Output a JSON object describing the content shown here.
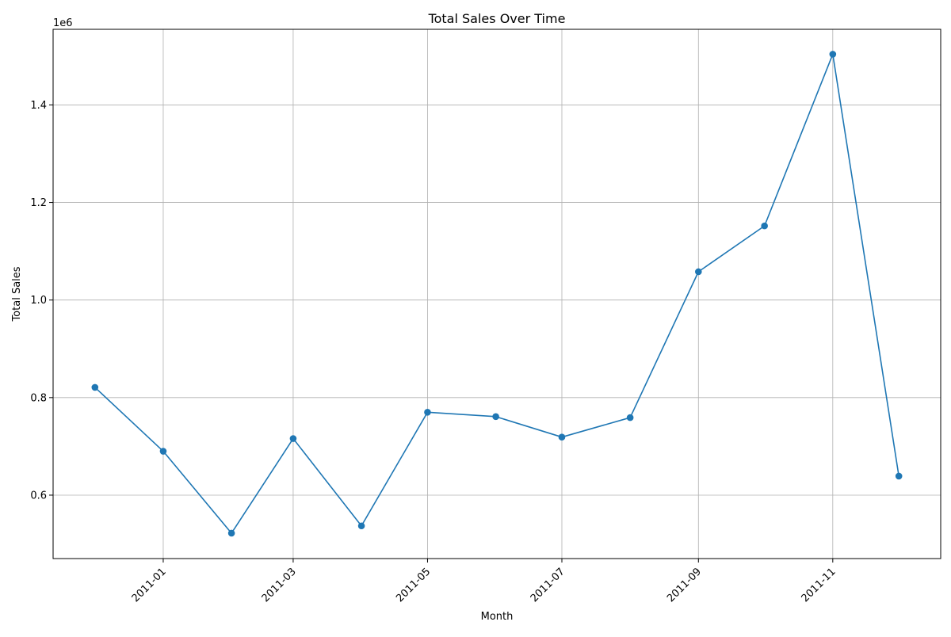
{
  "chart_data": {
    "type": "line",
    "title": "Total Sales Over Time",
    "xlabel": "Month",
    "ylabel": "Total Sales",
    "y_offset_label": "1e6",
    "x": [
      "2010-12",
      "2011-01",
      "2011-02",
      "2011-03",
      "2011-04",
      "2011-05",
      "2011-06",
      "2011-07",
      "2011-08",
      "2011-09",
      "2011-10",
      "2011-11",
      "2011-12"
    ],
    "series": [
      {
        "values": [
          821000,
          690000,
          522000,
          716000,
          537000,
          770000,
          761000,
          719000,
          759000,
          1058000,
          1152000,
          1504000,
          639000
        ],
        "color": "#1f77b4",
        "marker": "circle"
      }
    ],
    "x_ticks": [
      "2011-01",
      "2011-03",
      "2011-05",
      "2011-07",
      "2011-09",
      "2011-11"
    ],
    "y_ticks": [
      0.6,
      0.8,
      1.0,
      1.2,
      1.4
    ],
    "y_tick_labels": [
      "0.6",
      "0.8",
      "1.0",
      "1.2",
      "1.4"
    ],
    "ylim": [
      470000,
      1555000
    ],
    "xlim": [
      "2010-11-12",
      "2011-12-20"
    ],
    "grid": true,
    "legend": "none"
  }
}
